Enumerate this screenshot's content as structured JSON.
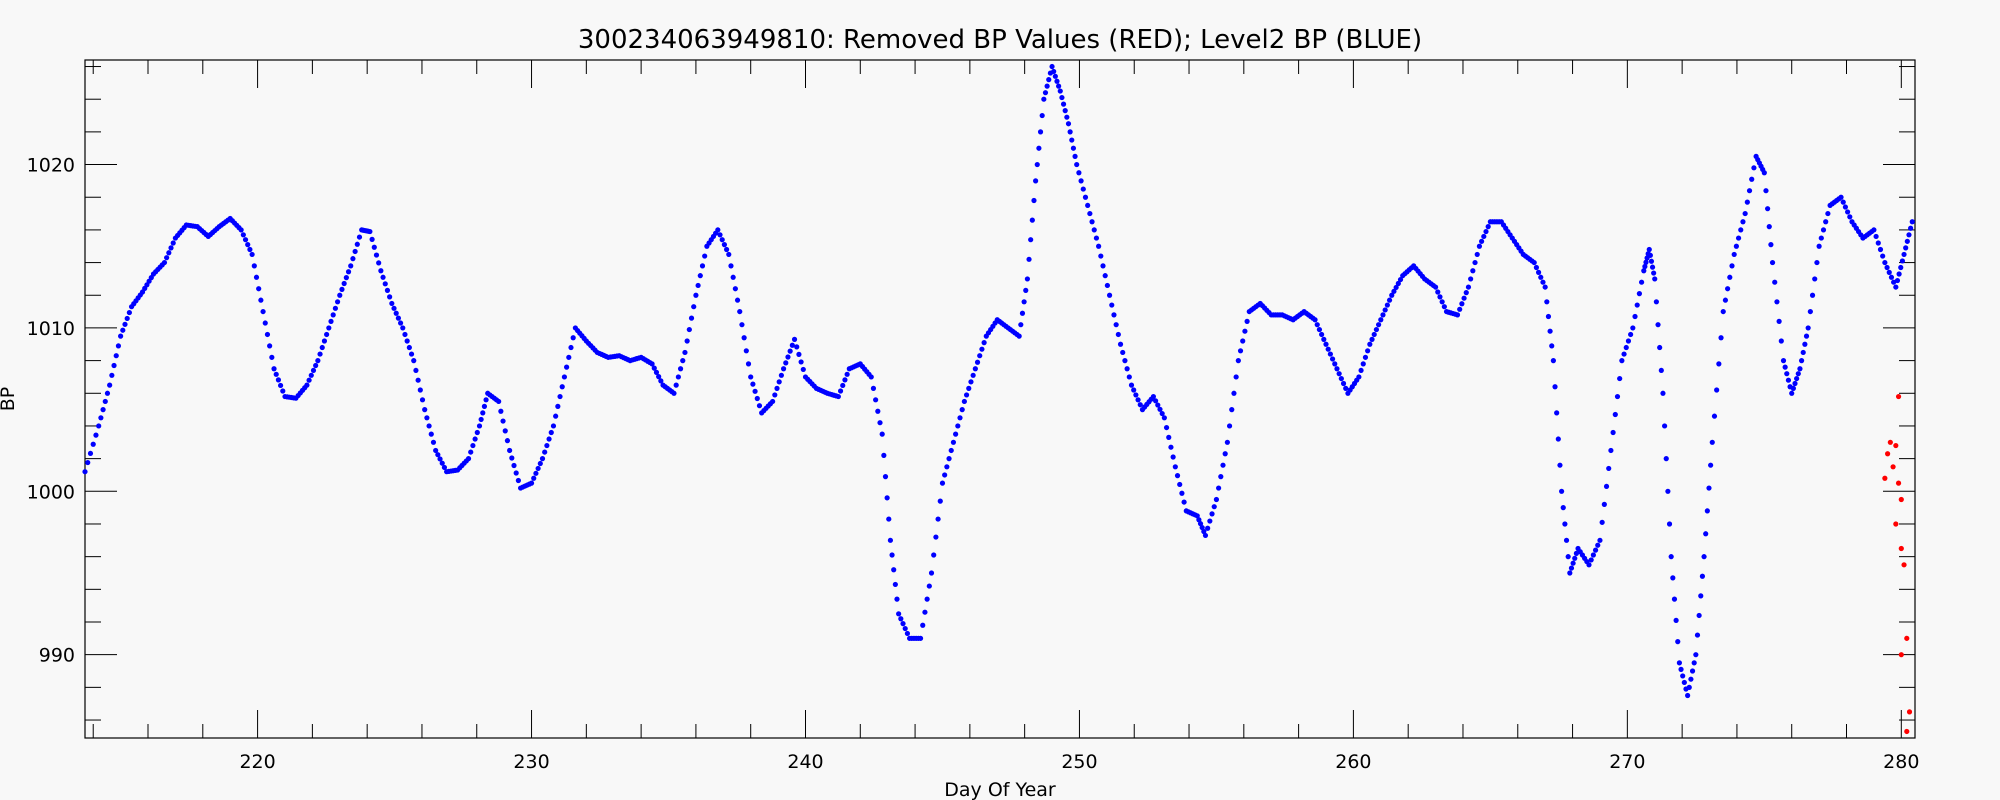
{
  "chart_data": {
    "type": "scatter",
    "title": "300234063949810: Removed BP Values (RED); Level2 BP (BLUE)",
    "xlabel": "Day Of Year",
    "ylabel": "BP",
    "xlim": [
      213.7,
      280.5
    ],
    "ylim": [
      984.9,
      1026.4
    ],
    "x_ticks": [
      220,
      230,
      240,
      250,
      260,
      270,
      280
    ],
    "y_ticks": [
      990,
      1000,
      1010,
      1020
    ],
    "colors": {
      "level2": "#0000ff",
      "removed": "#ff0000",
      "axes": "#000000",
      "background": "#f8f8f8"
    },
    "series": [
      {
        "name": "Level2 BP",
        "color": "#0000ff",
        "points": [
          [
            213.7,
            1001.2
          ],
          [
            214.2,
            1004
          ],
          [
            214.6,
            1006.5
          ],
          [
            215.0,
            1009.5
          ],
          [
            215.4,
            1011.3
          ],
          [
            215.8,
            1012.2
          ],
          [
            216.2,
            1013.3
          ],
          [
            216.6,
            1014.0
          ],
          [
            217.0,
            1015.5
          ],
          [
            217.4,
            1016.3
          ],
          [
            217.8,
            1016.2
          ],
          [
            218.2,
            1015.6
          ],
          [
            218.6,
            1016.2
          ],
          [
            219.0,
            1016.7
          ],
          [
            219.4,
            1016.0
          ],
          [
            219.8,
            1014.5
          ],
          [
            220.2,
            1011.0
          ],
          [
            220.6,
            1007.5
          ],
          [
            221.0,
            1005.8
          ],
          [
            221.4,
            1005.7
          ],
          [
            221.8,
            1006.5
          ],
          [
            222.2,
            1008.0
          ],
          [
            222.6,
            1010.0
          ],
          [
            223.0,
            1012.0
          ],
          [
            223.4,
            1013.8
          ],
          [
            223.8,
            1016.0
          ],
          [
            224.1,
            1015.9
          ],
          [
            224.5,
            1013.5
          ],
          [
            224.9,
            1011.5
          ],
          [
            225.3,
            1010.0
          ],
          [
            225.7,
            1008.0
          ],
          [
            226.1,
            1005.0
          ],
          [
            226.5,
            1002.5
          ],
          [
            226.9,
            1001.2
          ],
          [
            227.3,
            1001.3
          ],
          [
            227.7,
            1002.0
          ],
          [
            228.1,
            1004.0
          ],
          [
            228.4,
            1006.0
          ],
          [
            228.8,
            1005.5
          ],
          [
            229.2,
            1002.5
          ],
          [
            229.6,
            1000.2
          ],
          [
            230.0,
            1000.5
          ],
          [
            230.4,
            1002.0
          ],
          [
            230.8,
            1004.0
          ],
          [
            231.2,
            1007.0
          ],
          [
            231.6,
            1010.0
          ],
          [
            232.0,
            1009.2
          ],
          [
            232.4,
            1008.5
          ],
          [
            232.8,
            1008.2
          ],
          [
            233.2,
            1008.3
          ],
          [
            233.6,
            1008.0
          ],
          [
            234.0,
            1008.2
          ],
          [
            234.4,
            1007.8
          ],
          [
            234.8,
            1006.5
          ],
          [
            235.2,
            1006.0
          ],
          [
            235.6,
            1008.5
          ],
          [
            236.0,
            1012.0
          ],
          [
            236.4,
            1015.0
          ],
          [
            236.8,
            1016.0
          ],
          [
            237.2,
            1014.5
          ],
          [
            237.6,
            1011.0
          ],
          [
            238.0,
            1007.0
          ],
          [
            238.4,
            1004.8
          ],
          [
            238.8,
            1005.5
          ],
          [
            239.2,
            1007.5
          ],
          [
            239.6,
            1009.3
          ],
          [
            240.0,
            1007.0
          ],
          [
            240.4,
            1006.3
          ],
          [
            240.8,
            1006.0
          ],
          [
            241.2,
            1005.8
          ],
          [
            241.6,
            1007.5
          ],
          [
            242.0,
            1007.8
          ],
          [
            242.4,
            1007.0
          ],
          [
            242.8,
            1003.5
          ],
          [
            243.1,
            997.0
          ],
          [
            243.4,
            992.5
          ],
          [
            243.8,
            991.0
          ],
          [
            244.2,
            991.0
          ],
          [
            244.6,
            995.0
          ],
          [
            245.0,
            1000.5
          ],
          [
            245.4,
            1003.0
          ],
          [
            245.8,
            1005.5
          ],
          [
            246.2,
            1007.5
          ],
          [
            246.6,
            1009.5
          ],
          [
            247.0,
            1010.5
          ],
          [
            247.4,
            1010.0
          ],
          [
            247.8,
            1009.5
          ],
          [
            248.1,
            1013.0
          ],
          [
            248.4,
            1019.0
          ],
          [
            248.7,
            1024.0
          ],
          [
            249.0,
            1026.0
          ],
          [
            249.3,
            1024.5
          ],
          [
            249.6,
            1022.5
          ],
          [
            249.9,
            1020.0
          ],
          [
            250.3,
            1017.5
          ],
          [
            250.7,
            1015.0
          ],
          [
            251.1,
            1012.0
          ],
          [
            251.5,
            1009.0
          ],
          [
            251.9,
            1006.5
          ],
          [
            252.3,
            1005.0
          ],
          [
            252.7,
            1005.8
          ],
          [
            253.1,
            1004.5
          ],
          [
            253.5,
            1001.5
          ],
          [
            253.9,
            998.8
          ],
          [
            254.3,
            998.5
          ],
          [
            254.6,
            997.3
          ],
          [
            255.0,
            999.5
          ],
          [
            255.4,
            1003.0
          ],
          [
            255.8,
            1008.0
          ],
          [
            256.2,
            1011.0
          ],
          [
            256.6,
            1011.5
          ],
          [
            257.0,
            1010.8
          ],
          [
            257.4,
            1010.8
          ],
          [
            257.8,
            1010.5
          ],
          [
            258.2,
            1011.0
          ],
          [
            258.6,
            1010.5
          ],
          [
            259.0,
            1009.0
          ],
          [
            259.4,
            1007.5
          ],
          [
            259.8,
            1006.0
          ],
          [
            260.2,
            1007.0
          ],
          [
            260.6,
            1009.0
          ],
          [
            261.0,
            1010.5
          ],
          [
            261.4,
            1012.0
          ],
          [
            261.8,
            1013.2
          ],
          [
            262.2,
            1013.8
          ],
          [
            262.6,
            1013.0
          ],
          [
            263.0,
            1012.5
          ],
          [
            263.4,
            1011.0
          ],
          [
            263.8,
            1010.8
          ],
          [
            264.2,
            1012.5
          ],
          [
            264.6,
            1015.0
          ],
          [
            265.0,
            1016.5
          ],
          [
            265.4,
            1016.5
          ],
          [
            265.8,
            1015.5
          ],
          [
            266.2,
            1014.5
          ],
          [
            266.6,
            1014.0
          ],
          [
            267.0,
            1012.5
          ],
          [
            267.3,
            1008.0
          ],
          [
            267.6,
            1000.0
          ],
          [
            267.9,
            995.0
          ],
          [
            268.2,
            996.5
          ],
          [
            268.6,
            995.5
          ],
          [
            269.0,
            997.0
          ],
          [
            269.4,
            1002.5
          ],
          [
            269.8,
            1008.0
          ],
          [
            270.2,
            1010.0
          ],
          [
            270.6,
            1013.5
          ],
          [
            270.8,
            1014.8
          ],
          [
            271.0,
            1013.0
          ],
          [
            271.3,
            1006.0
          ],
          [
            271.6,
            996.0
          ],
          [
            271.9,
            989.5
          ],
          [
            272.2,
            987.5
          ],
          [
            272.5,
            990.0
          ],
          [
            272.8,
            996.0
          ],
          [
            273.1,
            1003.0
          ],
          [
            273.5,
            1011.0
          ],
          [
            273.9,
            1014.5
          ],
          [
            274.3,
            1017.0
          ],
          [
            274.7,
            1020.5
          ],
          [
            275.0,
            1019.5
          ],
          [
            275.3,
            1014.0
          ],
          [
            275.7,
            1008.0
          ],
          [
            276.0,
            1006.0
          ],
          [
            276.3,
            1007.5
          ],
          [
            276.6,
            1010.0
          ],
          [
            277.0,
            1015.0
          ],
          [
            277.4,
            1017.5
          ],
          [
            277.8,
            1018.0
          ],
          [
            278.2,
            1016.5
          ],
          [
            278.6,
            1015.5
          ],
          [
            279.0,
            1016.0
          ],
          [
            279.4,
            1014.0
          ],
          [
            279.8,
            1012.5
          ],
          [
            280.1,
            1014.5
          ],
          [
            280.4,
            1016.5
          ]
        ]
      },
      {
        "name": "Removed BP",
        "color": "#ff0000",
        "points": [
          [
            279.9,
            1005.8
          ],
          [
            279.6,
            1003.0
          ],
          [
            279.8,
            1002.8
          ],
          [
            279.5,
            1002.3
          ],
          [
            279.7,
            1001.5
          ],
          [
            279.4,
            1000.8
          ],
          [
            279.9,
            1000.5
          ],
          [
            280.0,
            999.5
          ],
          [
            279.8,
            998.0
          ],
          [
            280.0,
            996.5
          ],
          [
            280.1,
            995.5
          ],
          [
            280.2,
            991.0
          ],
          [
            280.0,
            990.0
          ],
          [
            280.3,
            986.5
          ],
          [
            280.2,
            985.3
          ]
        ]
      }
    ]
  }
}
